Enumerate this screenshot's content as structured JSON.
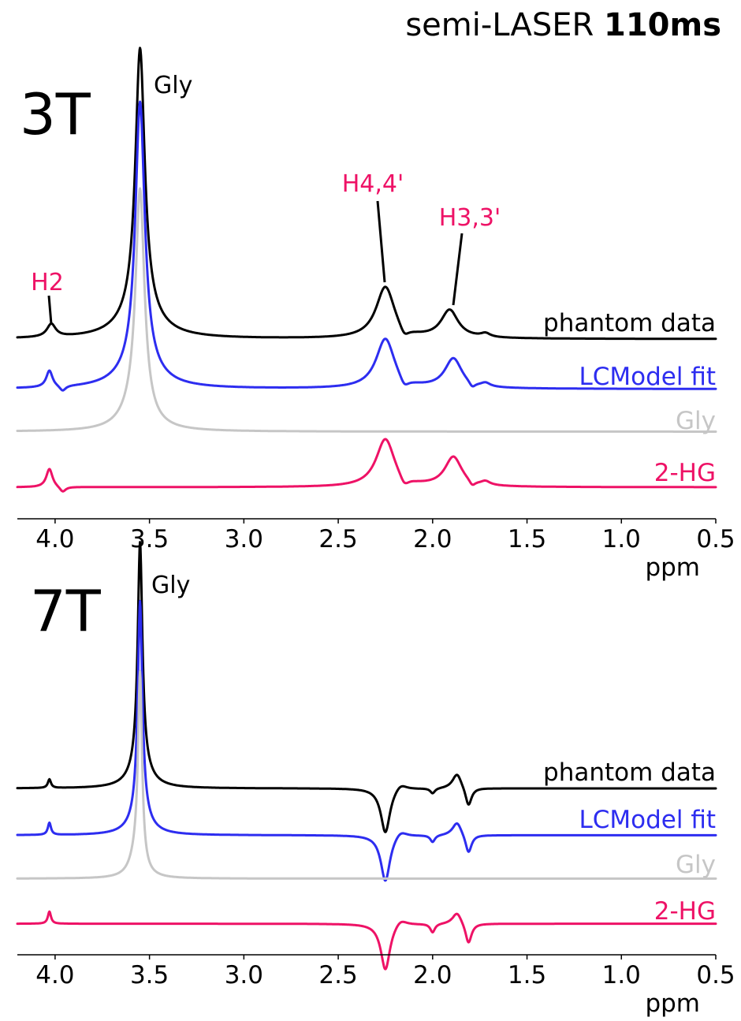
{
  "title": {
    "prefix": "semi-LASER ",
    "bold": "110ms"
  },
  "colors": {
    "phantom": "#000000",
    "fit": "#2d2df0",
    "gly": "#c6c6c6",
    "hg": "#ee1266",
    "label_pink": "#ee1266"
  },
  "chart_data": [
    {
      "type": "line",
      "panel_label": "3T",
      "xlabel": "ppm",
      "xlim": [
        4.2,
        0.5
      ],
      "x_reversed": true,
      "xticks": [
        4.0,
        3.5,
        3.0,
        2.5,
        2.0,
        1.5,
        1.0,
        0.5
      ],
      "xtick_labels": [
        "4.0",
        "3.5",
        "3.0",
        "2.5",
        "2.0",
        "1.5",
        "1.0",
        "0.5"
      ],
      "grid": false,
      "annotations": [
        {
          "text": "Gly",
          "color": "black"
        },
        {
          "text": "H2",
          "color": "pink",
          "ppm": 4.02
        },
        {
          "text": "H4,4'",
          "color": "pink",
          "ppm": 2.25
        },
        {
          "text": "H3,3'",
          "color": "pink",
          "ppm": 1.9
        }
      ],
      "series": [
        {
          "name": "phantom data",
          "key": "phantom",
          "offset": 0,
          "peaks": [
            [
              4.02,
              0.07,
              0.028
            ],
            [
              3.55,
              1.45,
              0.03
            ],
            [
              3.55,
              0.12,
              0.12
            ],
            [
              2.25,
              0.28,
              0.06
            ],
            [
              2.15,
              -0.05,
              0.03
            ],
            [
              1.91,
              0.15,
              0.055
            ],
            [
              1.72,
              0.02,
              0.03
            ]
          ]
        },
        {
          "name": "LCModel fit",
          "key": "fit",
          "offset": -0.27,
          "peaks": [
            [
              4.03,
              0.09,
              0.02
            ],
            [
              3.96,
              -0.03,
              0.02
            ],
            [
              3.55,
              1.45,
              0.03
            ],
            [
              3.55,
              0.1,
              0.12
            ],
            [
              2.25,
              0.27,
              0.06
            ],
            [
              2.15,
              -0.05,
              0.03
            ],
            [
              1.89,
              0.16,
              0.055
            ],
            [
              1.79,
              -0.03,
              0.02
            ],
            [
              1.72,
              0.02,
              0.03
            ]
          ]
        },
        {
          "name": "Gly",
          "key": "gly",
          "offset": -0.5,
          "peaks": [
            [
              3.55,
              1.2,
              0.028
            ],
            [
              3.57,
              0.12,
              0.08
            ]
          ]
        },
        {
          "name": "2-HG",
          "key": "hg",
          "offset": -0.8,
          "peaks": [
            [
              4.03,
              0.1,
              0.02
            ],
            [
              3.96,
              -0.03,
              0.02
            ],
            [
              2.25,
              0.26,
              0.06
            ],
            [
              2.15,
              -0.05,
              0.03
            ],
            [
              1.89,
              0.16,
              0.055
            ],
            [
              1.79,
              -0.03,
              0.02
            ],
            [
              1.72,
              0.02,
              0.03
            ]
          ]
        }
      ]
    },
    {
      "type": "line",
      "panel_label": "7T",
      "xlabel": "ppm",
      "xlim": [
        4.2,
        0.5
      ],
      "x_reversed": true,
      "xticks": [
        4.0,
        3.5,
        3.0,
        2.5,
        2.0,
        1.5,
        1.0,
        0.5
      ],
      "xtick_labels": [
        "4.0",
        "3.5",
        "3.0",
        "2.5",
        "2.0",
        "1.5",
        "1.0",
        "0.5"
      ],
      "grid": false,
      "annotations": [
        {
          "text": "Gly",
          "color": "black"
        }
      ],
      "series": [
        {
          "name": "phantom data",
          "key": "phantom",
          "offset": 0,
          "peaks": [
            [
              4.03,
              0.05,
              0.01
            ],
            [
              3.55,
              1.3,
              0.015
            ],
            [
              3.55,
              0.12,
              0.06
            ],
            [
              2.25,
              -0.26,
              0.03
            ],
            [
              2.17,
              0.04,
              0.04
            ],
            [
              2.0,
              -0.03,
              0.015
            ],
            [
              1.87,
              0.09,
              0.03
            ],
            [
              1.81,
              -0.11,
              0.02
            ]
          ]
        },
        {
          "name": "LCModel fit",
          "key": "fit",
          "offset": -0.27,
          "peaks": [
            [
              4.03,
              0.07,
              0.01
            ],
            [
              3.55,
              1.25,
              0.015
            ],
            [
              3.55,
              0.1,
              0.06
            ],
            [
              2.25,
              -0.27,
              0.03
            ],
            [
              2.17,
              0.04,
              0.04
            ],
            [
              2.0,
              -0.04,
              0.015
            ],
            [
              1.87,
              0.08,
              0.03
            ],
            [
              1.81,
              -0.11,
              0.02
            ]
          ]
        },
        {
          "name": "Gly",
          "key": "gly",
          "offset": -0.52,
          "peaks": [
            [
              3.55,
              1.1,
              0.013
            ],
            [
              3.57,
              0.12,
              0.04
            ]
          ]
        },
        {
          "name": "2-HG",
          "key": "hg",
          "offset": -0.78,
          "peaks": [
            [
              4.03,
              0.07,
              0.01
            ],
            [
              2.25,
              -0.27,
              0.03
            ],
            [
              2.17,
              0.04,
              0.04
            ],
            [
              2.0,
              -0.05,
              0.015
            ],
            [
              1.87,
              0.07,
              0.03
            ],
            [
              1.81,
              -0.12,
              0.02
            ]
          ]
        }
      ]
    }
  ]
}
